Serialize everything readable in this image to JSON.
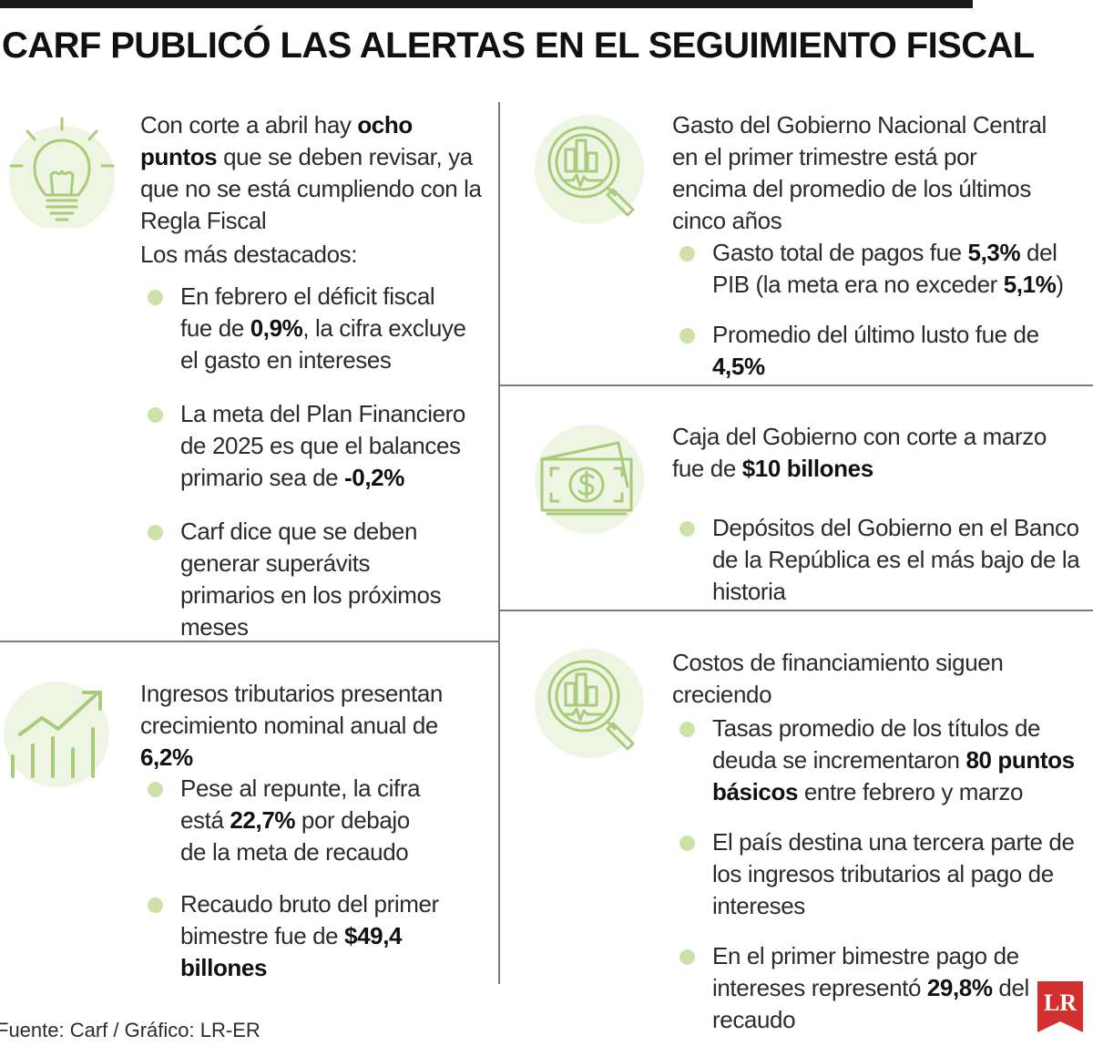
{
  "title": "CARF PUBLICÓ LAS ALERTAS EN EL SEGUIMIENTO FISCAL",
  "accent_color": "#cde2a9",
  "icon_color": "#a9cc7a",
  "panels": {
    "a": {
      "icon": "lightbulb-icon",
      "intro_pre": "Con corte a abril hay ",
      "intro_bold": "ocho puntos",
      "intro_post": " que se deben revisar, ya que no se está cumpliendo con la Regla Fiscal",
      "subhead": "Los más destacados:",
      "bullets": [
        {
          "pre": "En febrero el déficit fiscal fue de ",
          "bold": "0,9%",
          "post": ", la cifra excluye el gasto en intereses"
        },
        {
          "pre": "La meta del Plan Financiero de 2025 es que el balances primario sea de ",
          "bold": "-0,2%",
          "post": ""
        },
        {
          "pre": "Carf dice que se deben generar superávits primarios en los próximos meses",
          "bold": "",
          "post": ""
        }
      ]
    },
    "b": {
      "icon": "growth-chart-icon",
      "intro_pre": "Ingresos tributarios presentan crecimiento nominal anual de ",
      "intro_bold": "6,2%",
      "intro_post": "",
      "bullets": [
        {
          "pre": "Pese al repunte, la cifra está ",
          "bold": "22,7%",
          "post": " por debajo de la meta de recaudo"
        },
        {
          "pre": "Recaudo bruto del primer bimestre fue de ",
          "bold": "$49,4 billones",
          "post": ""
        }
      ]
    },
    "c": {
      "icon": "magnifier-chart-icon",
      "intro": "Gasto del Gobierno Nacional Central en el primer trimestre está por encima del promedio de los últimos cinco años",
      "bullets": [
        {
          "pre": "Gasto total de pagos fue ",
          "bold": "5,3%",
          "post": " del PIB (la meta era no exceder ",
          "bold2": "5,1%",
          "post2": ")"
        },
        {
          "pre": "Promedio del último lusto fue de ",
          "bold": "4,5%",
          "post": ""
        }
      ]
    },
    "d": {
      "icon": "banknote-icon",
      "intro_pre": "Caja del Gobierno con corte a marzo fue de ",
      "intro_bold": "$10 billones",
      "bullets": [
        {
          "pre": "Depósitos del Gobierno en el Banco de la República es el más bajo de la historia",
          "bold": "",
          "post": ""
        }
      ]
    },
    "e": {
      "icon": "magnifier-chart-icon",
      "intro": "Costos de financiamiento siguen creciendo",
      "bullets": [
        {
          "pre": "Tasas promedio de los títulos de deuda se incrementaron ",
          "bold": "80 puntos básicos",
          "post": " entre febrero y marzo"
        },
        {
          "pre": "El país destina una tercera parte de los ingresos tributarios al pago de intereses",
          "bold": "",
          "post": ""
        },
        {
          "pre": "En el primer bimestre pago de intereses representó ",
          "bold": "29,8%",
          "post": " del recaudo"
        }
      ]
    }
  },
  "footer": "Fuente: Carf / Gráfico: LR-ER",
  "logo_text": "LR",
  "logo_color": "#d32f2f"
}
